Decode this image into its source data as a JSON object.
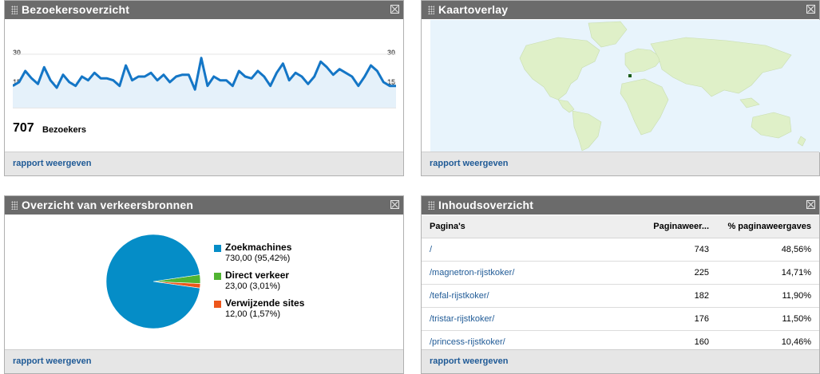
{
  "visitors": {
    "title": "Bezoekersoverzicht",
    "y_top": "30",
    "y_mid": "15",
    "total": "707",
    "total_label": "Bezoekers",
    "link": "rapport weergeven",
    "chart_data": {
      "type": "area",
      "y_ticks": [
        15,
        30
      ],
      "ylim": [
        0,
        35
      ],
      "values": [
        13,
        15,
        21,
        17,
        14,
        23,
        16,
        12,
        19,
        15,
        13,
        18,
        16,
        20,
        17,
        17,
        16,
        13,
        24,
        16,
        18,
        18,
        20,
        16,
        19,
        15,
        18,
        19,
        19,
        11,
        28,
        13,
        18,
        16,
        16,
        13,
        21,
        18,
        17,
        21,
        18,
        13,
        20,
        25,
        16,
        20,
        18,
        14,
        18,
        26,
        23,
        19,
        22,
        20,
        18,
        13,
        18,
        24,
        21,
        15,
        13,
        13
      ]
    }
  },
  "map": {
    "title": "Kaartoverlay",
    "link": "rapport weergeven",
    "colors": {
      "ocean": "#e8f4fc",
      "land": "#dff0c8",
      "highlight": "#1a5c1a"
    }
  },
  "traffic": {
    "title": "Overzicht van verkeersbronnen",
    "link": "rapport weergeven",
    "chart_data": {
      "type": "pie",
      "series": [
        {
          "name": "Zoekmachines",
          "label": "730,00 (95,42%)",
          "value": 730.0,
          "color": "#058dc7"
        },
        {
          "name": "Direct verkeer",
          "label": "23,00 (3,01%)",
          "value": 23.0,
          "color": "#50b432"
        },
        {
          "name": "Verwijzende sites",
          "label": "12,00 (1,57%)",
          "value": 12.0,
          "color": "#ed561b"
        }
      ]
    }
  },
  "content": {
    "title": "Inhoudsoverzicht",
    "link": "rapport weergeven",
    "headers": [
      "Pagina's",
      "Paginaweer...",
      "% paginaweergaves"
    ],
    "rows": [
      [
        "/",
        "743",
        "48,56%"
      ],
      [
        "/magnetron-rijstkoker/",
        "225",
        "14,71%"
      ],
      [
        "/tefal-rijstkoker/",
        "182",
        "11,90%"
      ],
      [
        "/tristar-rijstkoker/",
        "176",
        "11,50%"
      ],
      [
        "/princess-rijstkoker/",
        "160",
        "10,46%"
      ]
    ]
  }
}
